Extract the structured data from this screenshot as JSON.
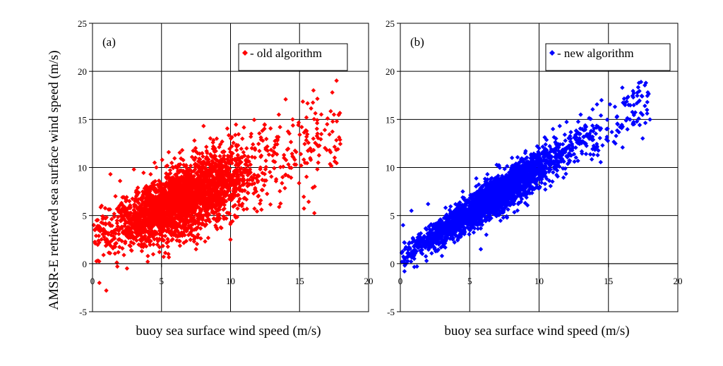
{
  "chart_data": [
    {
      "type": "scatter",
      "panel_label": "(a)",
      "xlabel": "buoy sea surface wind speed (m/s)",
      "ylabel": "AMSR-E retrieved sea surface wind speed (m/s)",
      "xlim": [
        0,
        20
      ],
      "ylim": [
        -5,
        25
      ],
      "xticks": [
        "0",
        "5",
        "10",
        "15",
        "20"
      ],
      "yticks": [
        "-5",
        "0",
        "5",
        "10",
        "15",
        "20",
        "25"
      ],
      "grid": true,
      "legend_position": "top-right",
      "marker": "diamond",
      "series": [
        {
          "name": "- old algorithm",
          "color": "#ff0000",
          "approx_relation": {
            "slope": 0.62,
            "intercept": 2.6,
            "spread_sd": 1.6,
            "x_range": [
              0,
              18
            ],
            "n_points": 3000
          },
          "points": [
            [
              0.3,
              4.5
            ],
            [
              0.5,
              -2.0
            ],
            [
              0.8,
              0.9
            ],
            [
              1.0,
              -2.8
            ],
            [
              1.3,
              9.3
            ],
            [
              1.8,
              -0.3
            ],
            [
              2.0,
              8.6
            ],
            [
              2.5,
              -0.5
            ],
            [
              3.0,
              9.8
            ],
            [
              4.0,
              0.2
            ],
            [
              4.5,
              10.5
            ],
            [
              5.5,
              1.0
            ],
            [
              6.5,
              11.8
            ],
            [
              7.5,
              1.5
            ],
            [
              9.0,
              13.0
            ],
            [
              10.0,
              2.5
            ],
            [
              11.5,
              13.5
            ],
            [
              12.0,
              7.0
            ],
            [
              13.5,
              15.5
            ],
            [
              14.5,
              15.0
            ],
            [
              15.5,
              15.2
            ],
            [
              16.0,
              13.0
            ],
            [
              17.0,
              14.5
            ],
            [
              17.7,
              14.8
            ]
          ]
        }
      ]
    },
    {
      "type": "scatter",
      "panel_label": "(b)",
      "xlabel": "buoy sea surface wind speed (m/s)",
      "ylabel": "",
      "xlim": [
        0,
        20
      ],
      "ylim": [
        -5,
        25
      ],
      "xticks": [
        "0",
        "5",
        "10",
        "15",
        "20"
      ],
      "yticks": [
        "-5",
        "0",
        "5",
        "10",
        "15",
        "20",
        "25"
      ],
      "grid": true,
      "legend_position": "top-right",
      "marker": "diamond",
      "series": [
        {
          "name": "- new algorithm",
          "color": "#0000ff",
          "approx_relation": {
            "slope": 0.93,
            "intercept": 0.6,
            "spread_sd": 0.85,
            "x_range": [
              0,
              18
            ],
            "n_points": 3000
          },
          "points": [
            [
              0.2,
              4.0
            ],
            [
              0.3,
              -0.8
            ],
            [
              0.8,
              5.5
            ],
            [
              1.2,
              -0.3
            ],
            [
              2.0,
              6.2
            ],
            [
              3.0,
              0.8
            ],
            [
              4.5,
              7.5
            ],
            [
              5.8,
              1.5
            ],
            [
              6.2,
              3.0
            ],
            [
              9.0,
              11.5
            ],
            [
              10.0,
              12.0
            ],
            [
              11.0,
              14.0
            ],
            [
              13.0,
              15.5
            ],
            [
              14.5,
              17.0
            ],
            [
              15.5,
              12.5
            ],
            [
              16.0,
              18.3
            ],
            [
              16.2,
              16.5
            ],
            [
              17.2,
              18.8
            ],
            [
              17.7,
              18.8
            ],
            [
              17.8,
              16.8
            ]
          ]
        }
      ]
    }
  ]
}
